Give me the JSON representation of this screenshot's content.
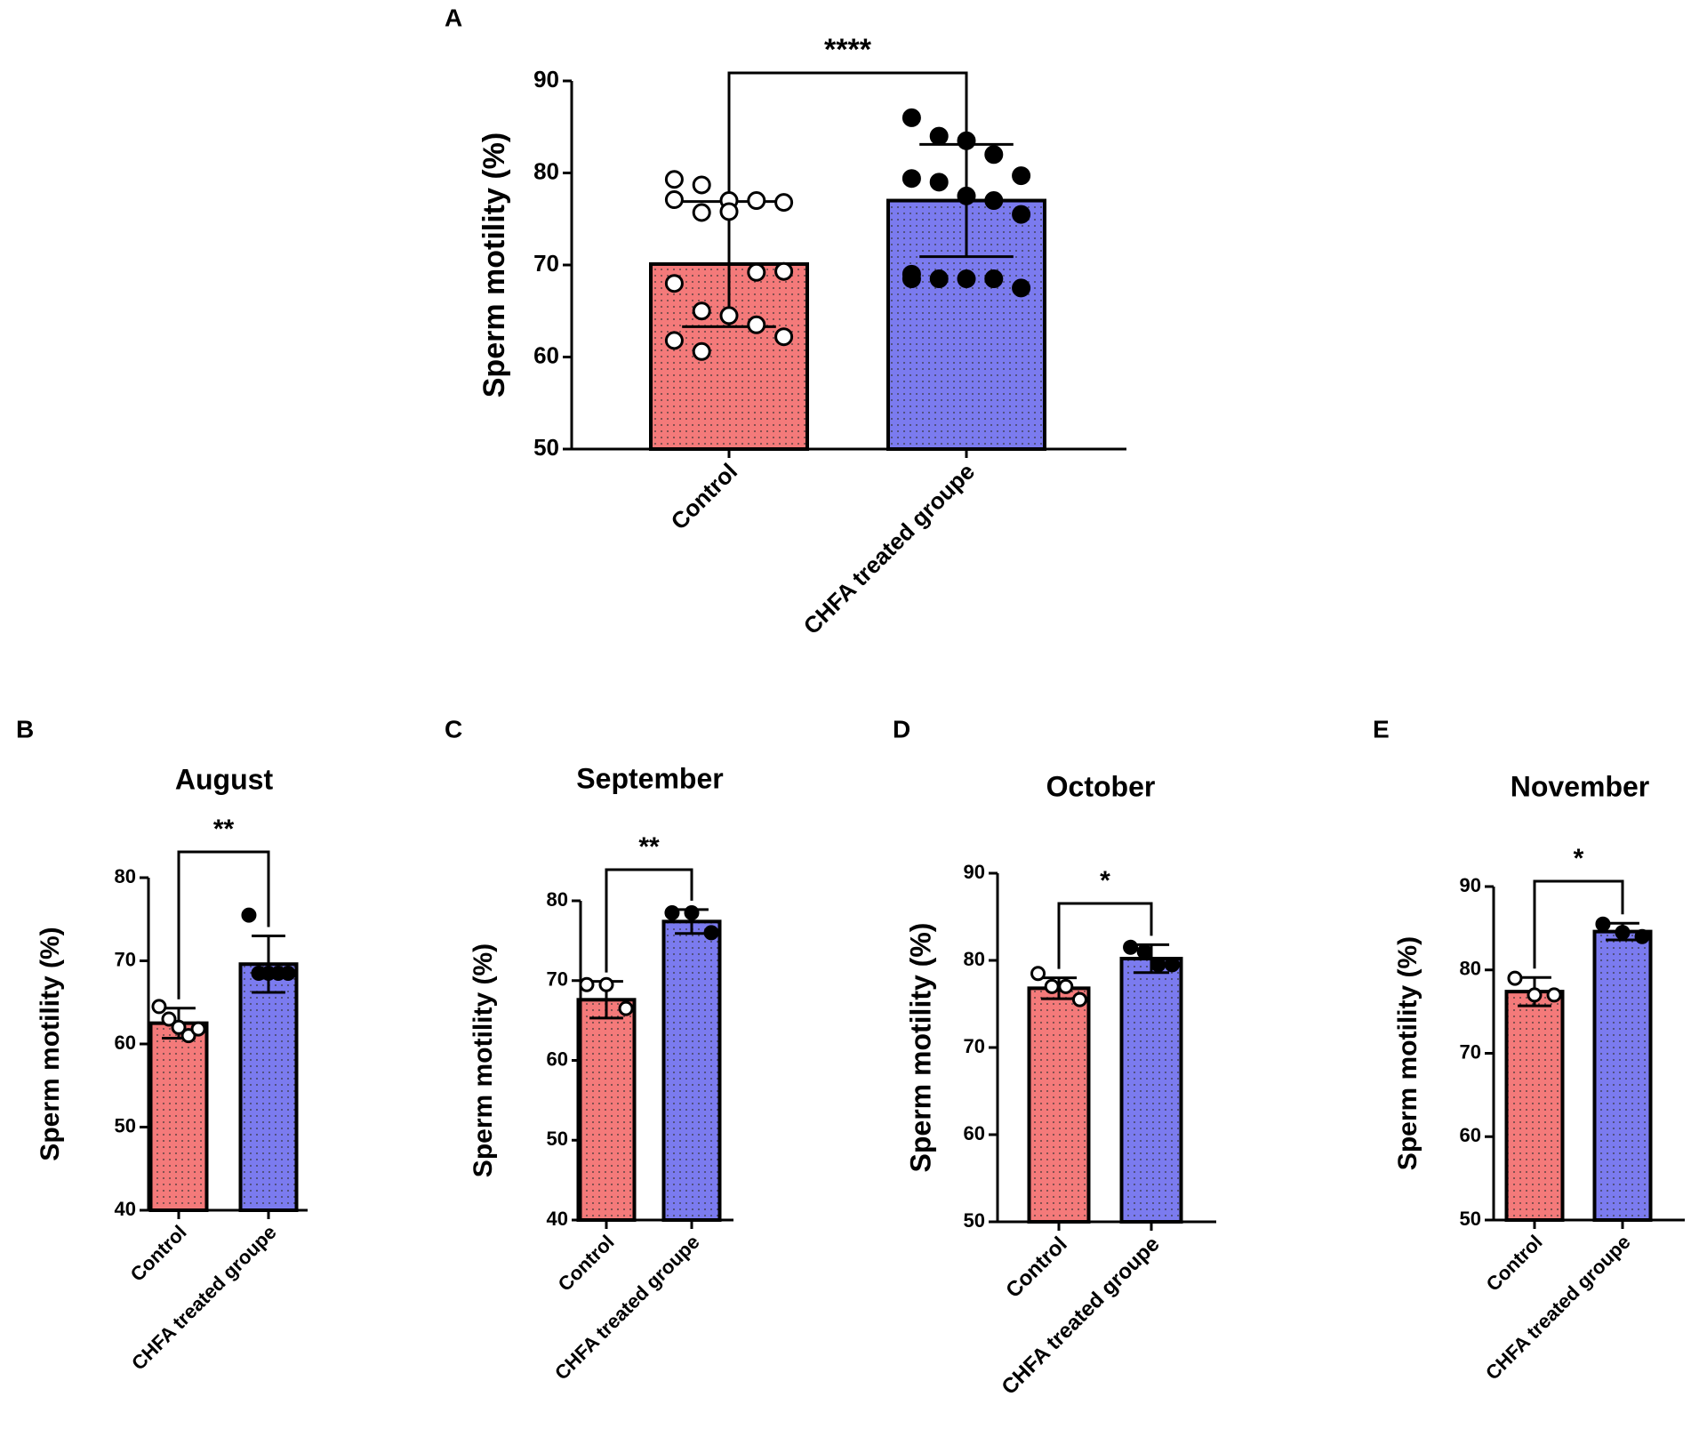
{
  "chart_data": [
    {
      "type": "bar",
      "panel": "A",
      "ylabel": "Sperm motility (%)",
      "annotation": "****",
      "categories": [
        "Control",
        "CHFA treated groupe"
      ],
      "colors": [
        "#f47a7a",
        "#7b7bef"
      ],
      "values": [
        70.1,
        77.0
      ],
      "errors": [
        6.8,
        6.1
      ],
      "points": [
        [
          79.3,
          78.7,
          77.0,
          77.0,
          76.8,
          77.1,
          75.7,
          75.8,
          69.2,
          69.3,
          68.0,
          65.0,
          64.5,
          63.5,
          62.2,
          61.8,
          60.6
        ],
        [
          86.0,
          84.0,
          83.5,
          82.0,
          79.7,
          79.4,
          79.0,
          77.5,
          77.0,
          75.5,
          69.0,
          68.5,
          68.5,
          68.5,
          67.5,
          68.5
        ]
      ],
      "ylim": [
        50,
        90
      ],
      "yticks": [
        50,
        60,
        70,
        80,
        90
      ]
    },
    {
      "type": "bar",
      "panel": "B",
      "title": "August",
      "ylabel": "Sperm motility (%)",
      "annotation": "**",
      "categories": [
        "Control",
        "CHFA treated groupe"
      ],
      "colors": [
        "#f47a7a",
        "#7b7bef"
      ],
      "values": [
        62.5,
        69.6
      ],
      "errors": [
        1.8,
        3.4
      ],
      "points": [
        [
          64.5,
          63.0,
          62.0,
          61.0,
          61.8
        ],
        [
          75.5,
          68.5,
          68.5,
          68.5,
          68.5
        ]
      ],
      "ylim": [
        40,
        80
      ],
      "yticks": [
        40,
        50,
        60,
        70,
        80
      ]
    },
    {
      "type": "bar",
      "panel": "C",
      "title": "September",
      "ylabel": "Sperm motility (%)",
      "annotation": "**",
      "categories": [
        "Control",
        "CHFA treated groupe"
      ],
      "colors": [
        "#f47a7a",
        "#7b7bef"
      ],
      "values": [
        67.6,
        77.4
      ],
      "errors": [
        2.3,
        1.5
      ],
      "points": [
        [
          69.5,
          69.5,
          66.5
        ],
        [
          78.5,
          78.5,
          76.0
        ]
      ],
      "ylim": [
        40,
        80
      ],
      "yticks": [
        40,
        50,
        60,
        70,
        80
      ]
    },
    {
      "type": "bar",
      "panel": "D",
      "title": "October",
      "ylabel": "Sperm motility (%)",
      "annotation": "*",
      "categories": [
        "Control",
        "CHFA treated groupe"
      ],
      "colors": [
        "#f47a7a",
        "#7b7bef"
      ],
      "values": [
        76.8,
        80.2
      ],
      "errors": [
        1.2,
        1.6
      ],
      "points": [
        [
          78.5,
          77.0,
          77.0,
          75.5
        ],
        [
          81.5,
          81.0,
          79.5,
          79.5
        ]
      ],
      "ylim": [
        50,
        90
      ],
      "yticks": [
        50,
        60,
        70,
        80,
        90
      ]
    },
    {
      "type": "bar",
      "panel": "E",
      "title": "November",
      "ylabel": "Sperm motility (%)",
      "annotation": "*",
      "categories": [
        "Control",
        "CHFA treated groupe"
      ],
      "colors": [
        "#f47a7a",
        "#7b7bef"
      ],
      "values": [
        77.4,
        84.6
      ],
      "errors": [
        1.7,
        1.0
      ],
      "points": [
        [
          79.0,
          77.0,
          77.0
        ],
        [
          85.5,
          84.5,
          84.0
        ]
      ],
      "ylim": [
        50,
        90
      ],
      "yticks": [
        50,
        60,
        70,
        80,
        90
      ]
    }
  ]
}
